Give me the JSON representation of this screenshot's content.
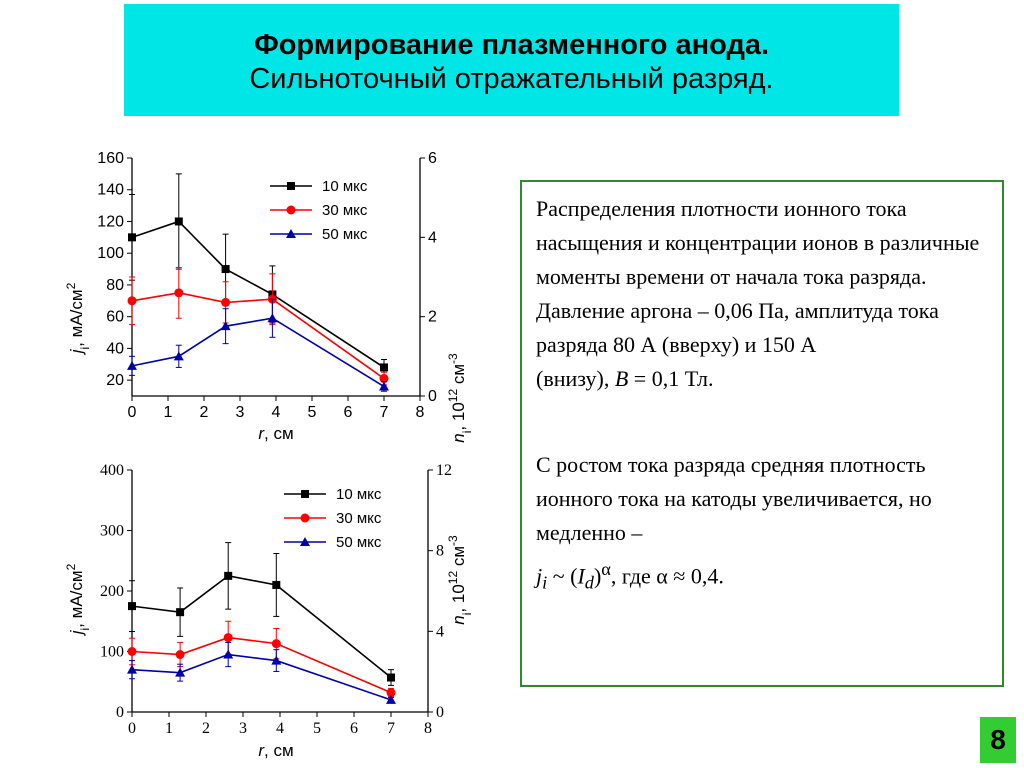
{
  "header": {
    "title": "Формирование плазменного анода.",
    "subtitle": "Сильноточный отражательный разряд."
  },
  "description": {
    "p1": "Распределения плотности ионного тока насыщения и концентрации ионов в различные моменты времени от начала тока разряда. Давление аргона – 0,06 Па, амплитуда тока разряда 80 А (вверху) и 150 А",
    "p1_end_prefix": "(внизу), ",
    "p1_B": "B",
    "p1_end_suffix": " = 0,1 Тл.",
    "p2": "С ростом тока разряда средняя плотность ионного тока на катоды увеличивается, но медленно –",
    "f_j": "j",
    "f_i": "i",
    "f_mid": " ~ (",
    "f_I": "I",
    "f_d": "d",
    "f_close": ")",
    "f_alpha": "α",
    "f_tail": ", где α ≈ 0,4."
  },
  "page_number": "8",
  "colors": {
    "title_bg": "#00e6e6",
    "box_border": "#2f8a2f",
    "page_bg": "#33cc33",
    "series": [
      "#000000",
      "#ff0000",
      "#0000aa"
    ]
  },
  "chart_data": [
    {
      "type": "line",
      "xlabel_var": "r",
      "xlabel_unit": ", см",
      "ylabel_var": "j",
      "ylabel_sub": "i",
      "ylabel_unit": ", мА/см",
      "ylabel_sup": "2",
      "y2label_var": "n",
      "y2label_sub": "i",
      "y2label_unit": ", 10",
      "y2label_sup": "12",
      "y2label_unit2": " см",
      "y2label_sup2": "-3",
      "xlim": [
        0,
        8
      ],
      "ylim": [
        10,
        160
      ],
      "y2lim": [
        0,
        6
      ],
      "xticks": [
        "0",
        "1",
        "2",
        "3",
        "4",
        "5",
        "6",
        "7",
        "8"
      ],
      "yticks": [
        "20",
        "40",
        "60",
        "80",
        "100",
        "120",
        "140",
        "160"
      ],
      "y2ticks": [
        "0",
        "2",
        "4",
        "6"
      ],
      "x": [
        0,
        1.3,
        2.6,
        3.9,
        7
      ],
      "series": [
        {
          "name": "10 мкс",
          "marker": "square",
          "values": [
            110,
            120,
            90,
            74,
            28
          ],
          "err": [
            27,
            30,
            22,
            18,
            5
          ]
        },
        {
          "name": "30 мкс",
          "marker": "circle",
          "values": [
            70,
            75,
            69,
            71,
            21
          ],
          "err": [
            15,
            16,
            13,
            16,
            4
          ]
        },
        {
          "name": "50 мкс",
          "marker": "triangle",
          "values": [
            29,
            35,
            54,
            59,
            16
          ],
          "err": [
            6,
            7,
            11,
            12,
            3
          ]
        }
      ],
      "legend": "top-right"
    },
    {
      "type": "line",
      "xlabel_var": "r",
      "xlabel_unit": ", см",
      "ylabel_var": "j",
      "ylabel_sub": "i",
      "ylabel_unit": ", мА/см",
      "ylabel_sup": "2",
      "y2label_var": "n",
      "y2label_sub": "i",
      "y2label_unit": ", 10",
      "y2label_sup": "12",
      "y2label_unit2": " см",
      "y2label_sup2": "-3",
      "xlim": [
        0,
        8
      ],
      "ylim": [
        0,
        400
      ],
      "y2lim": [
        0,
        12
      ],
      "xticks": [
        "0",
        "1",
        "2",
        "3",
        "4",
        "5",
        "6",
        "7",
        "8"
      ],
      "yticks": [
        "0",
        "100",
        "200",
        "300",
        "400"
      ],
      "y2ticks": [
        "0",
        "4",
        "8",
        "12"
      ],
      "x": [
        0,
        1.3,
        2.6,
        3.9,
        7
      ],
      "series": [
        {
          "name": "10 мкс",
          "marker": "square",
          "values": [
            175,
            165,
            225,
            210,
            57
          ],
          "err": [
            42,
            40,
            55,
            52,
            13
          ]
        },
        {
          "name": "30 мкс",
          "marker": "circle",
          "values": [
            100,
            95,
            123,
            113,
            32
          ],
          "err": [
            22,
            20,
            27,
            25,
            7
          ]
        },
        {
          "name": "50 мкс",
          "marker": "triangle",
          "values": [
            70,
            65,
            95,
            85,
            20
          ],
          "err": [
            15,
            14,
            20,
            18,
            4
          ]
        }
      ],
      "legend": "top-right"
    }
  ]
}
